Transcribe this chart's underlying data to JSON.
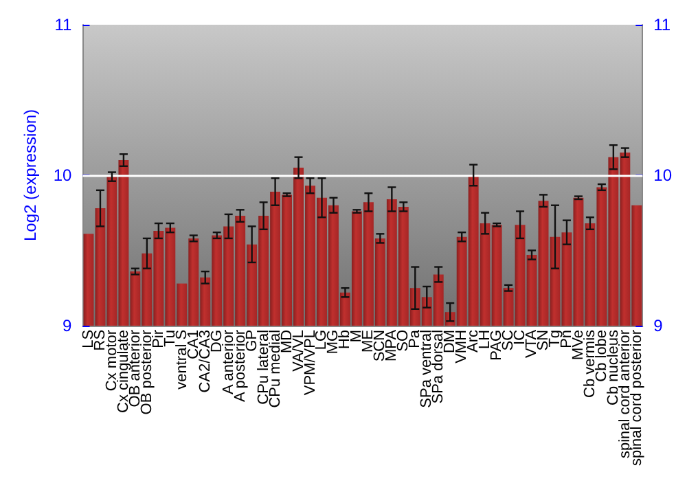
{
  "chart_data": {
    "type": "bar",
    "ylabel": "Log2 (expression)",
    "categories": [
      "LS",
      "RS",
      "Cx motor",
      "Cx cingulate",
      "OB anterior",
      "OB posterior",
      "Pir",
      "Tu",
      "ventral S",
      "CA1",
      "CA2/CA3",
      "DG",
      "A anterior",
      "A posterior",
      "GP",
      "CPu lateral",
      "CPu medial",
      "MD",
      "VA/VL",
      "VPM/VPL",
      "LG",
      "MG",
      "Hb",
      "M",
      "ME",
      "SCN",
      "MPA",
      "SO",
      "Pa",
      "SPa ventral",
      "SPa dorsal",
      "DM",
      "VMH",
      "Arc",
      "LH",
      "PAG",
      "SC",
      "IC",
      "VTA",
      "SN",
      "Tg",
      "Pn",
      "MVe",
      "Cb vermis",
      "Cb lobe",
      "Cb nucleus",
      "spinal cord anterior",
      "spinal cord posterior"
    ],
    "values": [
      9.61,
      9.78,
      9.99,
      10.1,
      9.36,
      9.48,
      9.63,
      9.65,
      9.28,
      9.58,
      9.32,
      9.6,
      9.66,
      9.73,
      9.54,
      9.73,
      9.89,
      9.87,
      10.05,
      9.93,
      9.85,
      9.8,
      9.22,
      9.76,
      9.82,
      9.58,
      9.84,
      9.79,
      9.25,
      9.19,
      9.34,
      9.09,
      9.59,
      10.0,
      9.68,
      9.67,
      9.25,
      9.67,
      9.47,
      9.83,
      9.59,
      9.62,
      9.85,
      9.68,
      9.92,
      10.12,
      10.15,
      9.8
    ],
    "errors": [
      null,
      0.12,
      0.03,
      0.04,
      0.02,
      0.1,
      0.05,
      0.03,
      null,
      0.02,
      0.04,
      0.02,
      0.08,
      0.04,
      0.12,
      0.09,
      0.09,
      0.01,
      0.07,
      0.05,
      0.13,
      0.05,
      0.03,
      0.01,
      0.06,
      0.03,
      0.08,
      0.03,
      0.14,
      0.07,
      0.05,
      0.06,
      0.03,
      0.07,
      0.07,
      0.01,
      0.02,
      0.09,
      0.03,
      0.04,
      0.21,
      0.08,
      0.01,
      0.04,
      0.02,
      0.08,
      0.03,
      null
    ],
    "color": "#c0302e",
    "ylim": [
      9,
      11
    ],
    "yticks": [
      9,
      10,
      11
    ],
    "y2lim": [
      9,
      11
    ],
    "y2ticks": [
      9,
      10,
      11
    ],
    "grid": "y"
  }
}
